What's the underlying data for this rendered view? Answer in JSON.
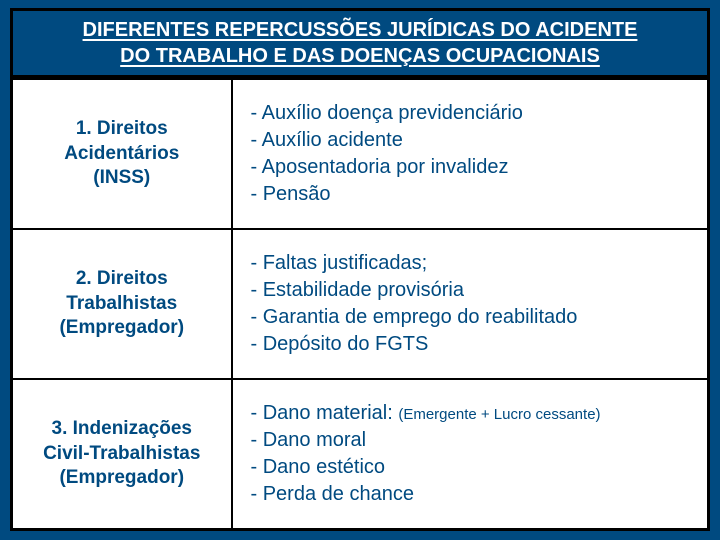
{
  "title_line1": "DIFERENTES REPERCUSSÕES JURÍDICAS DO ACIDENTE",
  "title_line2": "DO TRABALHO E DAS DOENÇAS OCUPACIONAIS",
  "rows": [
    {
      "label_l1": "1. Direitos",
      "label_l2": "Acidentários",
      "label_l3": "(INSS)",
      "items": [
        "- Auxílio doença previdenciário",
        "- Auxílio acidente",
        "- Aposentadoria por invalidez",
        "- Pensão"
      ]
    },
    {
      "label_l1": "2. Direitos",
      "label_l2": "Trabalhistas",
      "label_l3": "(Empregador)",
      "items": [
        "- Faltas justificadas;",
        "- Estabilidade provisória",
        "- Garantia de emprego do reabilitado",
        "- Depósito do FGTS"
      ]
    },
    {
      "label_l1": "3. Indenizações",
      "label_l2": "Civil-Trabalhistas",
      "label_l3": "(Empregador)",
      "items": [
        "- Dano material: ",
        "- Dano moral",
        "- Dano estético",
        "- Perda de chance"
      ],
      "note_after_first": "(Emergente + Lucro cessante)"
    }
  ]
}
